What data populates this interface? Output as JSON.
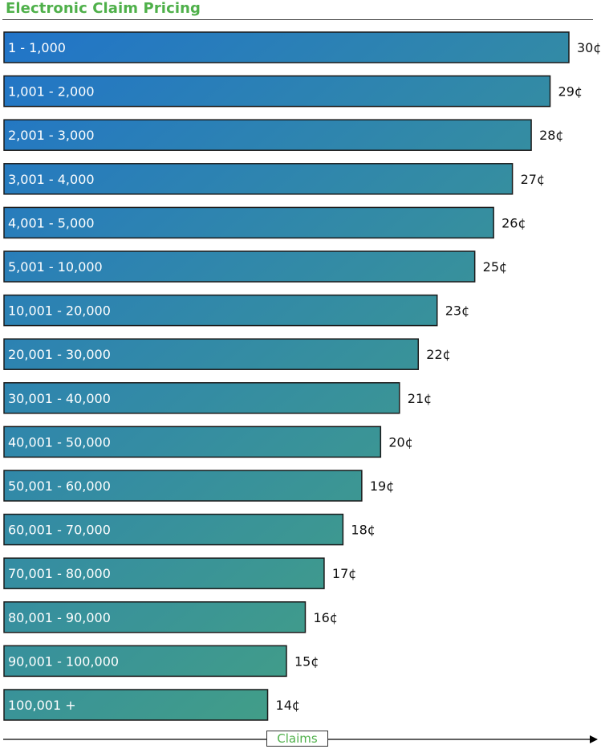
{
  "chart_data": {
    "type": "bar",
    "orientation": "horizontal",
    "title": "Electronic Claim Pricing",
    "xlabel": "Claims",
    "ylabel": "",
    "categories": [
      "1 - 1,000",
      "1,001 - 2,000",
      "2,001 - 3,000",
      "3,001 - 4,000",
      "4,001 - 5,000",
      "5,001 - 10,000",
      "10,001 - 20,000",
      "20,001 - 30,000",
      "30,001 - 40,000",
      "40,001 - 50,000",
      "50,001 - 60,000",
      "60,001 - 70,000",
      "70,001 - 80,000",
      "80,001 - 90,000",
      "90,001 - 100,000",
      "100,001 +"
    ],
    "values": [
      30,
      29,
      28,
      27,
      26,
      25,
      23,
      22,
      21,
      20,
      19,
      18,
      17,
      16,
      15,
      14
    ],
    "value_labels": [
      "30¢",
      "29¢",
      "28¢",
      "27¢",
      "26¢",
      "25¢",
      "23¢",
      "22¢",
      "21¢",
      "20¢",
      "19¢",
      "18¢",
      "17¢",
      "16¢",
      "15¢",
      "14¢"
    ],
    "unit": "¢",
    "grid": false,
    "legend": "none",
    "colors": {
      "gradient_start": "#2174c9",
      "gradient_end": "#4aa877",
      "title": "#4fb04a",
      "axis_label": "#4fb04a"
    }
  }
}
